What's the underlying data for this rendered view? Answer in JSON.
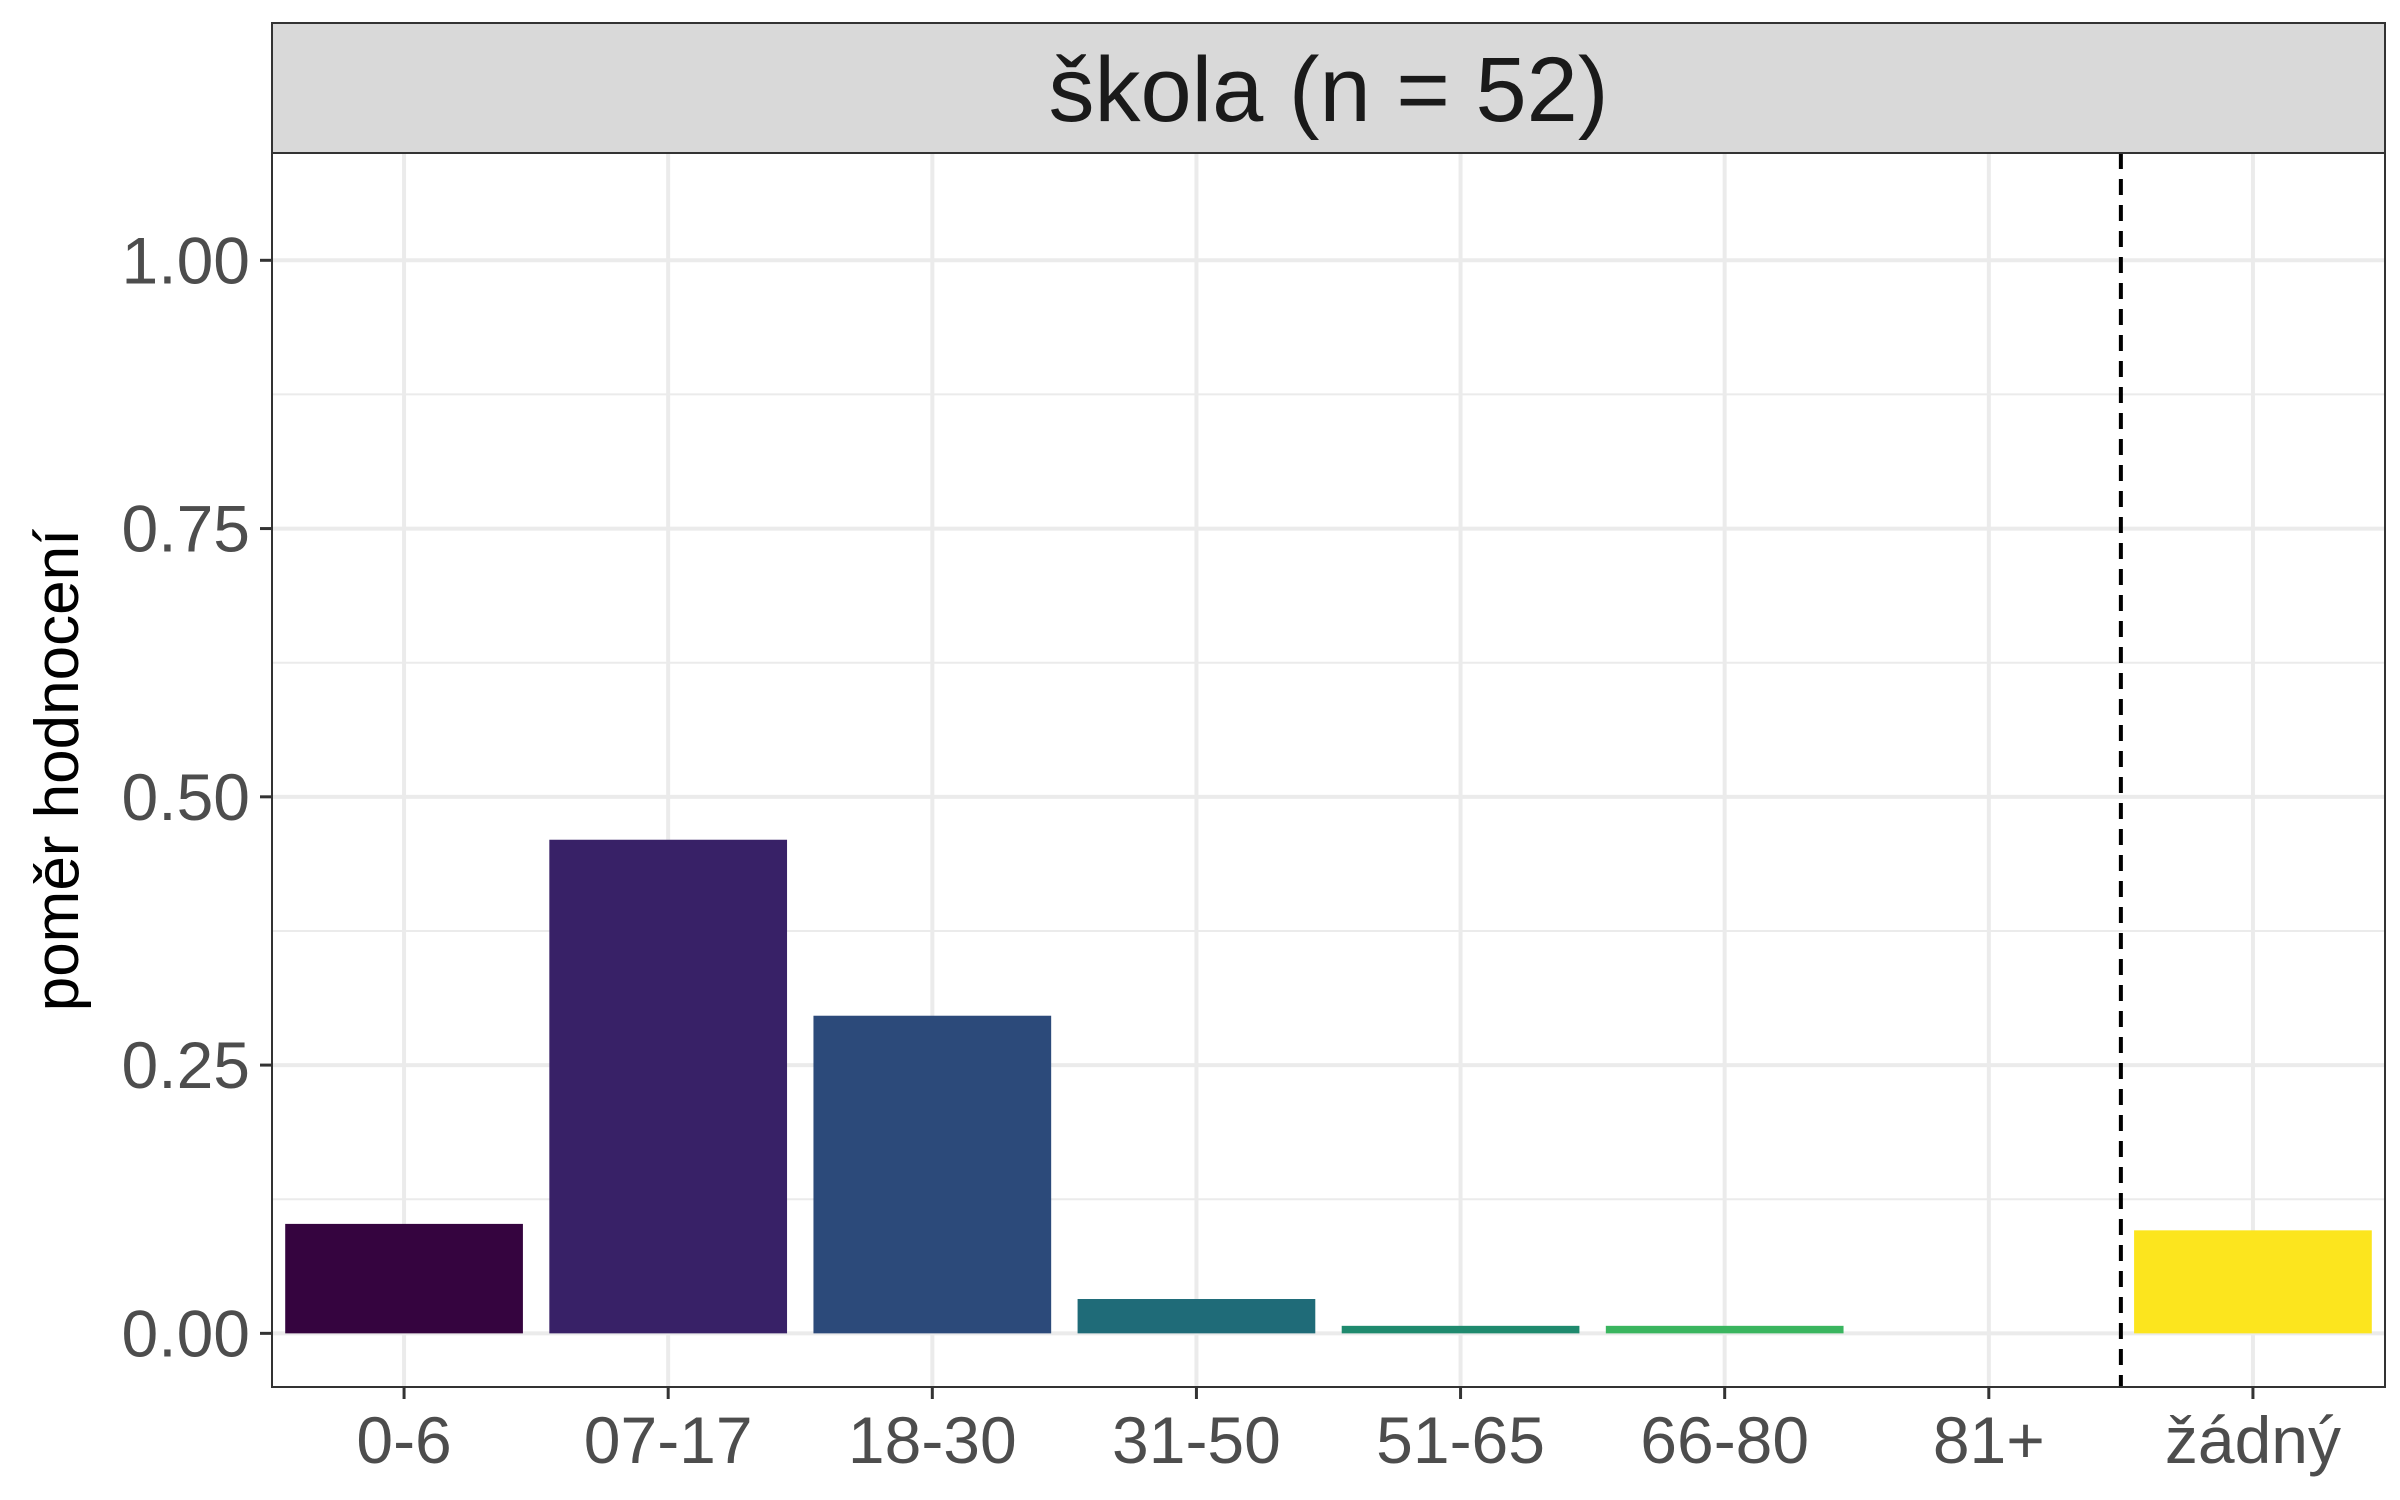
{
  "chart_data": {
    "type": "bar",
    "facet_title": "škola (n = 52)",
    "xlabel": "",
    "ylabel": "poměr hodnocení",
    "ylim": [
      -0.05,
      1.1
    ],
    "y_ticks": [
      "0.00",
      "0.25",
      "0.50",
      "0.75",
      "1.00"
    ],
    "grid": true,
    "legend": "none",
    "categories": [
      "0-6",
      "07-17",
      "18-30",
      "31-50",
      "51-65",
      "66-80",
      "81+",
      "žádný"
    ],
    "values": [
      0.102,
      0.46,
      0.296,
      0.032,
      0.007,
      0.007,
      0.0,
      0.096
    ],
    "colors": [
      "#35043f",
      "#382167",
      "#2c4a7a",
      "#1f6b78",
      "#1f8a6e",
      "#3ab55f",
      "#7ed03c",
      "#fce51e"
    ],
    "reference_line": {
      "between_categories": [
        "81+",
        "žádný"
      ],
      "style": "dashed",
      "color": "#000000"
    }
  }
}
